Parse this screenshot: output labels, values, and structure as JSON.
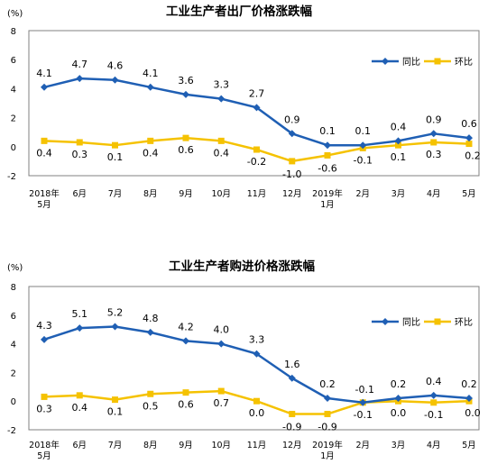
{
  "chart_data": [
    {
      "type": "line",
      "title": "工业生产者出厂价格涨跌幅",
      "unit_label": "(%)",
      "categories": [
        [
          "2018年",
          "5月"
        ],
        [
          "6月"
        ],
        [
          "7月"
        ],
        [
          "8月"
        ],
        [
          "9月"
        ],
        [
          "10月"
        ],
        [
          "11月"
        ],
        [
          "12月"
        ],
        [
          "2019年",
          "1月"
        ],
        [
          "2月"
        ],
        [
          "3月"
        ],
        [
          "4月"
        ],
        [
          "5月"
        ]
      ],
      "ylim": [
        -2,
        8
      ],
      "yticks": [
        "-2",
        "0",
        "2",
        "4",
        "6",
        "8"
      ],
      "legend_position": "top-right",
      "series": [
        {
          "name": "同比",
          "color": "#1f5fb4",
          "values": [
            4.1,
            4.7,
            4.6,
            4.1,
            3.6,
            3.3,
            2.7,
            0.9,
            0.1,
            0.1,
            0.4,
            0.9,
            0.6
          ],
          "labels": [
            "4.1",
            "4.7",
            "4.6",
            "4.1",
            "3.6",
            "3.3",
            "2.7",
            "0.9",
            "0.1",
            "0.1",
            "0.4",
            "0.9",
            "0.6"
          ]
        },
        {
          "name": "环比",
          "color": "#f5c200",
          "values": [
            0.4,
            0.3,
            0.1,
            0.4,
            0.6,
            0.4,
            -0.2,
            -1.0,
            -0.6,
            -0.1,
            0.1,
            0.3,
            0.2
          ],
          "labels": [
            "0.4",
            "0.3",
            "0.1",
            "0.4",
            "0.6",
            "0.4",
            "-0.2",
            "-1.0",
            "-0.6",
            "-0.1",
            "0.1",
            "0.3",
            "0.2"
          ]
        }
      ]
    },
    {
      "type": "line",
      "title": "工业生产者购进价格涨跌幅",
      "unit_label": "(%)",
      "categories": [
        [
          "2018年",
          "5月"
        ],
        [
          "6月"
        ],
        [
          "7月"
        ],
        [
          "8月"
        ],
        [
          "9月"
        ],
        [
          "10月"
        ],
        [
          "11月"
        ],
        [
          "12月"
        ],
        [
          "2019年",
          "1月"
        ],
        [
          "2月"
        ],
        [
          "3月"
        ],
        [
          "4月"
        ],
        [
          "5月"
        ]
      ],
      "ylim": [
        -2,
        8
      ],
      "yticks": [
        "-2",
        "0",
        "2",
        "4",
        "6",
        "8"
      ],
      "legend_position": "top-right",
      "series": [
        {
          "name": "同比",
          "color": "#1f5fb4",
          "values": [
            4.3,
            5.1,
            5.2,
            4.8,
            4.2,
            4.0,
            3.3,
            1.6,
            0.2,
            -0.1,
            0.2,
            0.4,
            0.2
          ],
          "labels": [
            "4.3",
            "5.1",
            "5.2",
            "4.8",
            "4.2",
            "4.0",
            "3.3",
            "1.6",
            "0.2",
            "-0.1",
            "0.2",
            "0.4",
            "0.2"
          ]
        },
        {
          "name": "环比",
          "color": "#f5c200",
          "values": [
            0.3,
            0.4,
            0.1,
            0.5,
            0.6,
            0.7,
            0.0,
            -0.9,
            -0.9,
            -0.1,
            0.0,
            -0.1,
            0.0
          ],
          "labels": [
            "0.3",
            "0.4",
            "0.1",
            "0.5",
            "0.6",
            "0.7",
            "0.0",
            "-0.9",
            "-0.9",
            "-0.1",
            "0.0",
            "-0.1",
            "0.0"
          ]
        }
      ]
    }
  ]
}
